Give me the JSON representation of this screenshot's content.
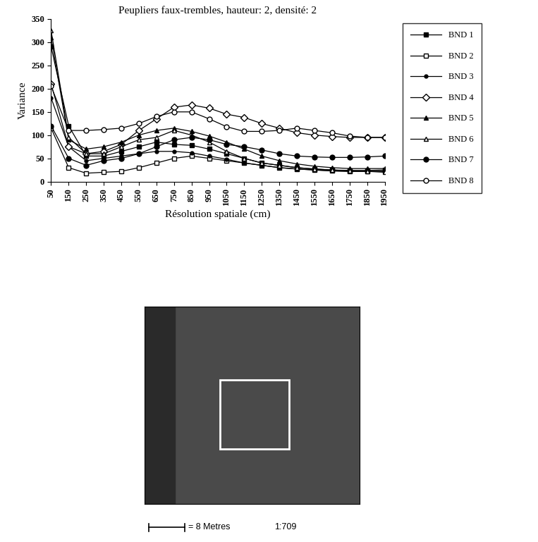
{
  "chart_data": {
    "type": "line",
    "title": "Peupliers faux-trembles, hauteur: 2, densité: 2",
    "x_label": "Résolution spatiale (cm)",
    "y_label": "Variance",
    "x": [
      50,
      150,
      250,
      350,
      450,
      550,
      650,
      750,
      850,
      950,
      1050,
      1150,
      1250,
      1350,
      1450,
      1550,
      1650,
      1750,
      1850,
      1950
    ],
    "xlim": [
      50,
      1950
    ],
    "xticks": [
      50,
      150,
      250,
      350,
      450,
      550,
      650,
      750,
      850,
      950,
      1050,
      1150,
      1250,
      1350,
      1450,
      1550,
      1650,
      1750,
      1850,
      1950
    ],
    "ylim": [
      0,
      350
    ],
    "yticks": [
      0,
      50,
      100,
      150,
      200,
      250,
      300,
      350
    ],
    "legend": "right",
    "series": [
      {
        "name": "BND 1",
        "color": "#000000",
        "marker": "filled_square",
        "values": [
          290,
          120,
          55,
          55,
          65,
          75,
          85,
          80,
          78,
          70,
          60,
          50,
          40,
          35,
          30,
          27,
          25,
          24,
          24,
          25
        ]
      },
      {
        "name": "BND 2",
        "color": "#000000",
        "marker": "open_square",
        "values": [
          115,
          30,
          18,
          20,
          22,
          30,
          40,
          50,
          55,
          50,
          45,
          40,
          35,
          30,
          27,
          25,
          23,
          22,
          22,
          22
        ]
      },
      {
        "name": "BND 3",
        "color": "#000000",
        "marker": "dot",
        "values": [
          180,
          75,
          45,
          50,
          55,
          60,
          65,
          65,
          62,
          55,
          48,
          40,
          35,
          30,
          27,
          25,
          23,
          22,
          22,
          22
        ]
      },
      {
        "name": "BND 4",
        "color": "#000000",
        "marker": "open_diamond",
        "values": [
          210,
          75,
          60,
          65,
          80,
          110,
          135,
          160,
          165,
          158,
          145,
          138,
          125,
          115,
          105,
          100,
          97,
          95,
          95,
          95
        ]
      },
      {
        "name": "BND 5",
        "color": "#000000",
        "marker": "filled_triangle",
        "values": [
          310,
          90,
          70,
          75,
          85,
          100,
          110,
          115,
          108,
          98,
          85,
          70,
          55,
          45,
          38,
          33,
          30,
          28,
          28,
          28
        ]
      },
      {
        "name": "BND 6",
        "color": "#000000",
        "marker": "open_triangle",
        "values": [
          325,
          95,
          60,
          60,
          75,
          90,
          95,
          110,
          100,
          85,
          65,
          50,
          40,
          35,
          30,
          27,
          25,
          23,
          22,
          20
        ]
      },
      {
        "name": "BND 7",
        "color": "#000000",
        "marker": "filled_circle",
        "values": [
          120,
          50,
          35,
          45,
          50,
          60,
          75,
          90,
          95,
          90,
          80,
          75,
          68,
          60,
          55,
          53,
          52,
          52,
          53,
          55
        ]
      },
      {
        "name": "BND 8",
        "color": "#000000",
        "marker": "open_circle",
        "values": [
          205,
          110,
          110,
          112,
          115,
          125,
          140,
          150,
          150,
          135,
          118,
          108,
          108,
          110,
          115,
          110,
          105,
          98,
          95,
          95
        ]
      }
    ]
  },
  "image": {
    "scale_text": "= 8 Metres",
    "ratio_text": "1:709"
  }
}
